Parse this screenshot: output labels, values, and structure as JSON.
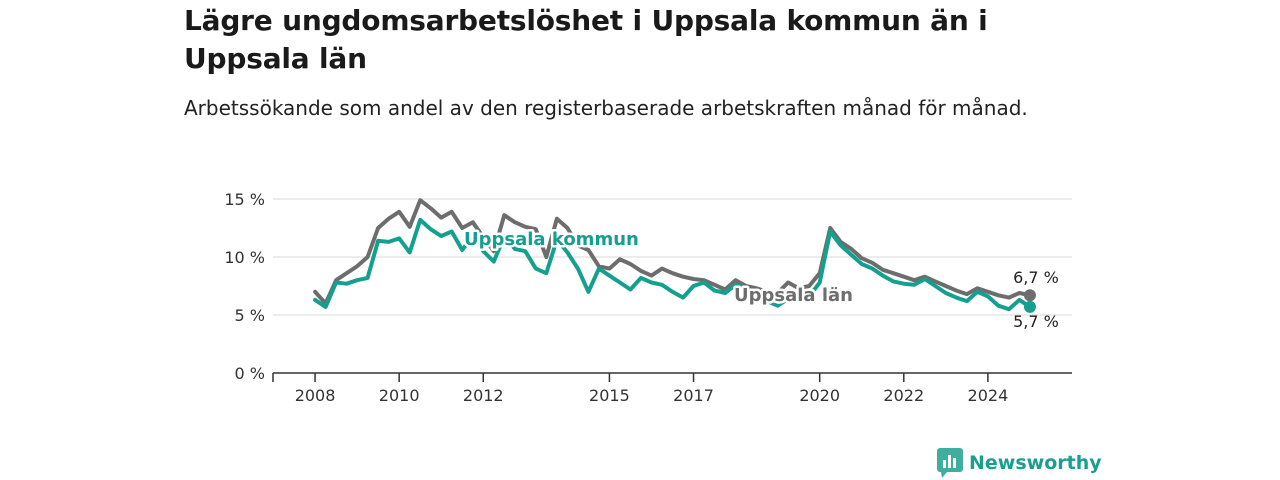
{
  "title": "Lägre ungdomsarbetslöshet i Uppsala kommun än i Uppsala län",
  "subtitle": "Arbetssökande som andel av den registerbaserade arbetskraften månad för månad.",
  "brand": {
    "name": "Newsworthy",
    "icon": "newsworthy-logo-icon"
  },
  "colors": {
    "kommun": "#14a08f",
    "lan": "#6d6d6d",
    "grid": "#d9d9d9",
    "axis": "#333333"
  },
  "chart_data": {
    "type": "line",
    "ylabel": "",
    "xlabel": "",
    "ylim": [
      0,
      15
    ],
    "y_ticks": [
      0,
      5,
      10,
      15
    ],
    "y_tick_labels": [
      "0 %",
      "5 %",
      "10 %",
      "15 %"
    ],
    "x_ticks": [
      2008,
      2010,
      2012,
      2015,
      2017,
      2020,
      2022,
      2024
    ],
    "x_tick_labels": [
      "2008",
      "2010",
      "2012",
      "2015",
      "2017",
      "2020",
      "2022",
      "2024"
    ],
    "grid": "horizontal",
    "series": [
      {
        "name": "Uppsala län",
        "color": "#6d6d6d",
        "end_label": "6,7 %",
        "x": [
          2008.0,
          2008.25,
          2008.5,
          2008.75,
          2009.0,
          2009.25,
          2009.5,
          2009.75,
          2010.0,
          2010.25,
          2010.5,
          2010.75,
          2011.0,
          2011.25,
          2011.5,
          2011.75,
          2012.0,
          2012.25,
          2012.5,
          2012.75,
          2013.0,
          2013.25,
          2013.5,
          2013.75,
          2014.0,
          2014.25,
          2014.5,
          2014.75,
          2015.0,
          2015.25,
          2015.5,
          2015.75,
          2016.0,
          2016.25,
          2016.5,
          2016.75,
          2017.0,
          2017.25,
          2017.5,
          2017.75,
          2018.0,
          2018.25,
          2018.5,
          2018.75,
          2019.0,
          2019.25,
          2019.5,
          2019.75,
          2020.0,
          2020.25,
          2020.5,
          2020.75,
          2021.0,
          2021.25,
          2021.5,
          2021.75,
          2022.0,
          2022.25,
          2022.5,
          2022.75,
          2023.0,
          2023.25,
          2023.5,
          2023.75,
          2024.0,
          2024.25,
          2024.5,
          2024.75,
          2025.0
        ],
        "values": [
          7.0,
          6.0,
          8.0,
          8.6,
          9.2,
          10.0,
          12.5,
          13.3,
          13.9,
          12.6,
          14.9,
          14.2,
          13.4,
          13.9,
          12.5,
          13.0,
          11.7,
          10.5,
          13.6,
          13.0,
          12.6,
          12.4,
          10.0,
          13.3,
          12.5,
          11.0,
          10.6,
          9.2,
          9.0,
          9.8,
          9.4,
          8.8,
          8.4,
          9.0,
          8.6,
          8.3,
          8.1,
          8.0,
          7.6,
          7.2,
          8.0,
          7.5,
          7.3,
          7.0,
          6.9,
          7.8,
          7.3,
          7.5,
          8.6,
          12.5,
          11.3,
          10.7,
          9.9,
          9.5,
          8.9,
          8.6,
          8.3,
          8.0,
          8.3,
          7.9,
          7.5,
          7.1,
          6.8,
          7.3,
          7.0,
          6.7,
          6.5,
          6.9,
          6.7
        ]
      },
      {
        "name": "Uppsala kommun",
        "color": "#14a08f",
        "end_label": "5,7 %",
        "x": [
          2008.0,
          2008.25,
          2008.5,
          2008.75,
          2009.0,
          2009.25,
          2009.5,
          2009.75,
          2010.0,
          2010.25,
          2010.5,
          2010.75,
          2011.0,
          2011.25,
          2011.5,
          2011.75,
          2012.0,
          2012.25,
          2012.5,
          2012.75,
          2013.0,
          2013.25,
          2013.5,
          2013.75,
          2014.0,
          2014.25,
          2014.5,
          2014.75,
          2015.0,
          2015.25,
          2015.5,
          2015.75,
          2016.0,
          2016.25,
          2016.5,
          2016.75,
          2017.0,
          2017.25,
          2017.5,
          2017.75,
          2018.0,
          2018.25,
          2018.5,
          2018.75,
          2019.0,
          2019.25,
          2019.5,
          2019.75,
          2020.0,
          2020.25,
          2020.5,
          2020.75,
          2021.0,
          2021.25,
          2021.5,
          2021.75,
          2022.0,
          2022.25,
          2022.5,
          2022.75,
          2023.0,
          2023.25,
          2023.5,
          2023.75,
          2024.0,
          2024.25,
          2024.5,
          2024.75,
          2025.0
        ],
        "values": [
          6.3,
          5.7,
          7.8,
          7.7,
          8.0,
          8.2,
          11.4,
          11.3,
          11.6,
          10.4,
          13.2,
          12.4,
          11.8,
          12.2,
          10.6,
          11.8,
          10.5,
          9.6,
          11.8,
          10.7,
          10.5,
          9.0,
          8.6,
          11.5,
          10.4,
          9.0,
          7.0,
          9.0,
          8.4,
          7.8,
          7.2,
          8.2,
          7.8,
          7.6,
          7.0,
          6.5,
          7.5,
          7.8,
          7.1,
          6.9,
          7.6,
          7.3,
          6.8,
          6.2,
          5.8,
          6.4,
          6.5,
          6.6,
          7.8,
          12.2,
          11.0,
          10.2,
          9.4,
          9.0,
          8.4,
          7.9,
          7.7,
          7.6,
          8.1,
          7.5,
          6.9,
          6.5,
          6.2,
          7.0,
          6.6,
          5.8,
          5.5,
          6.3,
          5.7
        ]
      }
    ]
  }
}
